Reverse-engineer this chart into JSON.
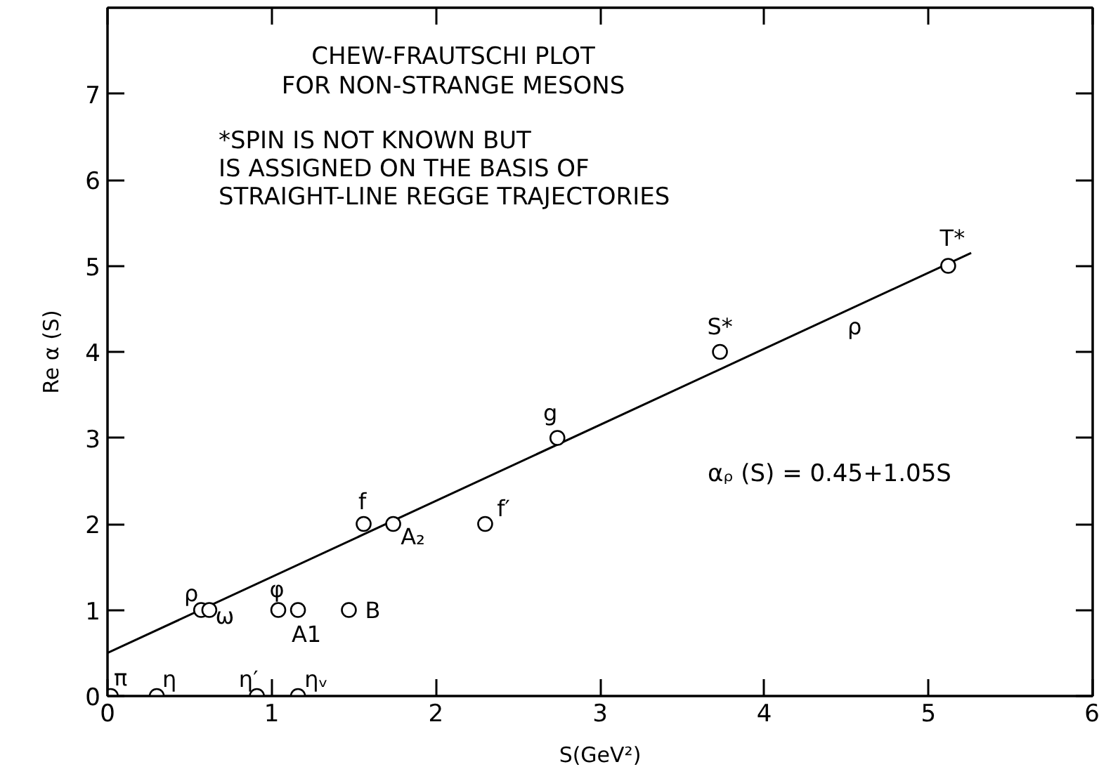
{
  "chart_data": {
    "type": "scatter",
    "title": "CHEW-FRAUTSCHI PLOT\nFOR NON-STRANGE MESONS",
    "xlabel": "S(GeV²)",
    "ylabel": "Re α (S)",
    "xlim": [
      0,
      6
    ],
    "ylim": [
      0,
      8
    ],
    "xticks": [
      0,
      1,
      2,
      3,
      4,
      5,
      6
    ],
    "yticks": [
      0,
      1,
      2,
      3,
      4,
      5,
      6,
      7
    ],
    "grid": false,
    "marker": "circle",
    "series": [
      {
        "color": "#000000",
        "x": [
          0.02,
          0.3,
          0.91,
          1.16,
          0.57,
          0.62,
          1.04,
          1.16,
          1.47,
          1.56,
          1.74,
          2.3,
          2.74,
          3.73,
          5.12
        ],
        "values": [
          0,
          0,
          0,
          0,
          1,
          1,
          1,
          1,
          1,
          2,
          2,
          2,
          3,
          4,
          5
        ]
      },
      {
        "type": "line",
        "marker": "none",
        "color": "#000000",
        "x": [
          0,
          5.26
        ],
        "values": [
          0.5,
          5.15
        ]
      }
    ],
    "annotations": [
      "*SPIN IS NOT KNOWN BUT\nIS ASSIGNED ON THE BASIS OF\nSTRAIGHT-LINE REGGE TRAJECTORIES",
      "αᵨ (S) = 0.45+1.05S",
      {
        "text": "π",
        "x": 0.02,
        "y": 0
      },
      {
        "text": "η",
        "x": 0.3,
        "y": 0
      },
      {
        "text": "η′",
        "x": 0.91,
        "y": 0
      },
      {
        "text": "ηᵥ",
        "x": 1.16,
        "y": 0
      },
      {
        "text": "ρ",
        "x": 0.57,
        "y": 1
      },
      {
        "text": "ω",
        "x": 0.62,
        "y": 1
      },
      {
        "text": "φ",
        "x": 1.04,
        "y": 1
      },
      {
        "text": "A1",
        "x": 1.16,
        "y": 1
      },
      {
        "text": "B",
        "x": 1.47,
        "y": 1
      },
      {
        "text": "f",
        "x": 1.56,
        "y": 2
      },
      {
        "text": "A₂",
        "x": 1.74,
        "y": 2
      },
      {
        "text": "f′",
        "x": 2.3,
        "y": 2
      },
      {
        "text": "g",
        "x": 2.74,
        "y": 3
      },
      {
        "text": "S*",
        "x": 3.73,
        "y": 4
      },
      {
        "text": "T*",
        "x": 5.12,
        "y": 5
      },
      {
        "text": "ρ",
        "x": 4.55,
        "y": 4.52
      }
    ]
  }
}
